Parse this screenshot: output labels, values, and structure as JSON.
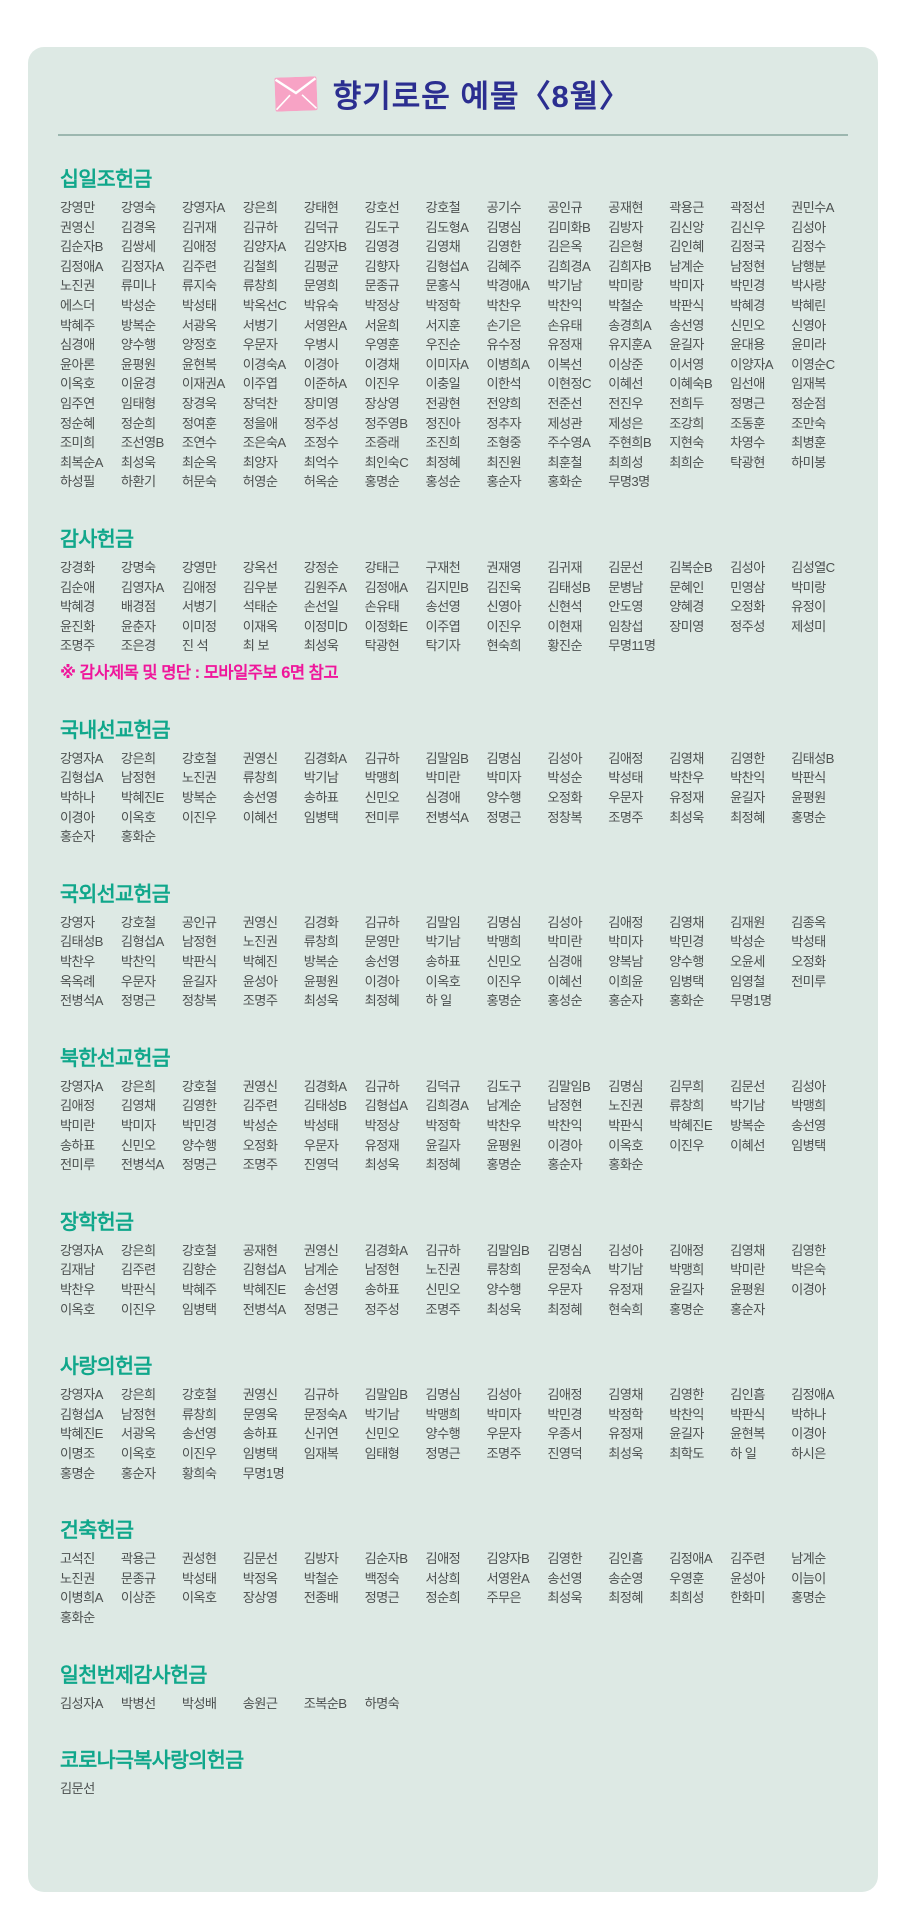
{
  "header": {
    "title": "향기로운  예물〈8월〉",
    "icon": "envelope-icon"
  },
  "colors": {
    "card_background": "#dde9e4",
    "title_navy": "#2b2e90",
    "section_teal": "#10a78b",
    "name_gray": "#4c504f",
    "note_magenta": "#ef169b",
    "envelope_pink": "#f7a3c5",
    "divider": "#9cb7af"
  },
  "sections": [
    {
      "id": "tithe",
      "title": "십일조헌금",
      "names": [
        "강영만",
        "강영숙",
        "강영자A",
        "강은희",
        "강태현",
        "강호선",
        "강호철",
        "공기수",
        "공인규",
        "공재현",
        "곽용근",
        "곽정선",
        "권민수A",
        "권영신",
        "김경옥",
        "김귀재",
        "김규하",
        "김덕규",
        "김도구",
        "김도형A",
        "김명심",
        "김미화B",
        "김방자",
        "김신앙",
        "김신우",
        "김성아",
        "김순자B",
        "김쌍세",
        "김애정",
        "김양자A",
        "김양자B",
        "김영경",
        "김영채",
        "김영한",
        "김은옥",
        "김은형",
        "김인혜",
        "김정국",
        "김정수",
        "김정애A",
        "김정자A",
        "김주련",
        "김철희",
        "김평균",
        "김향자",
        "김형섭A",
        "김혜주",
        "김희경A",
        "김희자B",
        "남계순",
        "남정현",
        "남행분",
        "노진권",
        "류미나",
        "류지숙",
        "류창희",
        "문영희",
        "문종규",
        "문홍식",
        "박경애A",
        "박기남",
        "박미랑",
        "박미자",
        "박민경",
        "박사랑",
        "에스더",
        "박성순",
        "박성태",
        "박옥선C",
        "박유숙",
        "박정상",
        "박정학",
        "박찬우",
        "박찬익",
        "박철순",
        "박판식",
        "박혜경",
        "박혜린",
        "박혜주",
        "방복순",
        "서광옥",
        "서병기",
        "서영완A",
        "서윤희",
        "서지훈",
        "손기은",
        "손유태",
        "송경희A",
        "송선영",
        "신민오",
        "신영아",
        "심경애",
        "양수행",
        "양정호",
        "우문자",
        "우병시",
        "우영훈",
        "우진순",
        "유수정",
        "유정재",
        "유지훈A",
        "윤길자",
        "윤대용",
        "윤미라",
        "윤아론",
        "윤평원",
        "윤현복",
        "이경숙A",
        "이경아",
        "이경채",
        "이미자A",
        "이병희A",
        "이복선",
        "이상준",
        "이서영",
        "이양자A",
        "이영순C",
        "이옥호",
        "이윤경",
        "이재권A",
        "이주엽",
        "이준하A",
        "이진우",
        "이충일",
        "이한석",
        "이현정C",
        "이혜선",
        "이혜숙B",
        "임선애",
        "임재복",
        "임주연",
        "임태형",
        "장경욱",
        "장덕찬",
        "장미영",
        "장상영",
        "전광현",
        "전양희",
        "전준선",
        "전진우",
        "전희두",
        "정명근",
        "정순점",
        "정순혜",
        "정순희",
        "정여훈",
        "정을애",
        "정주성",
        "정주영B",
        "정진아",
        "정추자",
        "제성관",
        "제성은",
        "조강희",
        "조동훈",
        "조만숙",
        "조미희",
        "조선영B",
        "조연수",
        "조은숙A",
        "조정수",
        "조증래",
        "조진희",
        "조형중",
        "주수영A",
        "주현희B",
        "지현숙",
        "차영수",
        "최병훈",
        "최복순A",
        "최성욱",
        "최순옥",
        "최양자",
        "최억수",
        "최인숙C",
        "최정혜",
        "최진원",
        "최훈철",
        "최희성",
        "최희순",
        "탁광현",
        "하미봉",
        "하성필",
        "하환기",
        "허문숙",
        "허영순",
        "허옥순",
        "홍명순",
        "홍성순",
        "홍순자",
        "홍화순",
        "무명3명"
      ]
    },
    {
      "id": "thanksgiving",
      "title": "감사헌금",
      "names": [
        "강경화",
        "강명숙",
        "강영만",
        "강옥선",
        "강정순",
        "강태근",
        "구재천",
        "권재영",
        "김귀재",
        "김문선",
        "김복순B",
        "김성아",
        "김성열C",
        "김순애",
        "김영자A",
        "김애정",
        "김우분",
        "김원주A",
        "김정애A",
        "김지민B",
        "김진욱",
        "김태성B",
        "문병남",
        "문혜인",
        "민영삼",
        "박미랑",
        "박혜경",
        "배경점",
        "서병기",
        "석태순",
        "손선일",
        "손유태",
        "송선영",
        "신영아",
        "신현석",
        "안도영",
        "양혜경",
        "오정화",
        "유정이",
        "윤진화",
        "윤춘자",
        "이미정",
        "이재옥",
        "이정미D",
        "이정화E",
        "이주엽",
        "이진우",
        "이현재",
        "임창섭",
        "장미영",
        "정주성",
        "제성미",
        "조명주",
        "조은경",
        "진 석",
        "최 보",
        "최성욱",
        "탁광현",
        "탁기자",
        "현숙희",
        "황진순",
        "무명11명"
      ],
      "note": "※ 감사제목 및 명단 : 모바일주보 6면 참고"
    },
    {
      "id": "domestic-mission",
      "title": "국내선교헌금",
      "names": [
        "강영자A",
        "강은희",
        "강호철",
        "권영신",
        "김경화A",
        "김규하",
        "김말임B",
        "김명심",
        "김성아",
        "김애정",
        "김영채",
        "김영한",
        "김태성B",
        "김형섭A",
        "남정현",
        "노진권",
        "류창희",
        "박기남",
        "박맹희",
        "박미란",
        "박미자",
        "박성순",
        "박성태",
        "박찬우",
        "박찬익",
        "박판식",
        "박하나",
        "박혜진E",
        "방복순",
        "송선영",
        "송하표",
        "신민오",
        "심경애",
        "양수행",
        "오정화",
        "우문자",
        "유정재",
        "윤길자",
        "윤평원",
        "이경아",
        "이옥호",
        "이진우",
        "이혜선",
        "임병택",
        "전미루",
        "전병석A",
        "정명근",
        "정창복",
        "조명주",
        "최성욱",
        "최정혜",
        "홍명순",
        "홍순자",
        "홍화순"
      ]
    },
    {
      "id": "overseas-mission",
      "title": "국외선교헌금",
      "names": [
        "강영자",
        "강호철",
        "공인규",
        "권영신",
        "김경화",
        "김규하",
        "김말임",
        "김명심",
        "김성아",
        "김애정",
        "김영채",
        "김재원",
        "김종옥",
        "김태성B",
        "김형섭A",
        "남정현",
        "노진권",
        "류창희",
        "문영만",
        "박기남",
        "박맹희",
        "박미란",
        "박미자",
        "박민경",
        "박성순",
        "박성태",
        "박찬우",
        "박찬익",
        "박판식",
        "박혜진",
        "방복순",
        "송선영",
        "송하표",
        "신민오",
        "심경애",
        "양복남",
        "양수행",
        "오윤세",
        "오정화",
        "옥옥례",
        "우문자",
        "윤길자",
        "윤성아",
        "윤평원",
        "이경아",
        "이옥호",
        "이진우",
        "이혜선",
        "이희윤",
        "임병택",
        "임영철",
        "전미루",
        "전병석A",
        "정명근",
        "정창복",
        "조명주",
        "최성욱",
        "최정혜",
        "하 일",
        "홍명순",
        "홍성순",
        "홍순자",
        "홍화순",
        "무명1명"
      ]
    },
    {
      "id": "northkorea-mission",
      "title": "북한선교헌금",
      "names": [
        "강영자A",
        "강은희",
        "강호철",
        "권영신",
        "김경화A",
        "김규하",
        "김덕규",
        "김도구",
        "김말임B",
        "김명심",
        "김무희",
        "김문선",
        "김성아",
        "김애정",
        "김영채",
        "김영한",
        "김주련",
        "김태성B",
        "김형섭A",
        "김희경A",
        "남계순",
        "남정현",
        "노진권",
        "류창희",
        "박기남",
        "박맹희",
        "박미란",
        "박미자",
        "박민경",
        "박성순",
        "박성태",
        "박정상",
        "박정학",
        "박찬우",
        "박찬익",
        "박판식",
        "박혜진E",
        "방복순",
        "송선영",
        "송하표",
        "신민오",
        "양수행",
        "오정화",
        "우문자",
        "유정재",
        "윤길자",
        "윤평원",
        "이경아",
        "이옥호",
        "이진우",
        "이혜선",
        "임병택",
        "전미루",
        "전병석A",
        "정명근",
        "조명주",
        "진영덕",
        "최성욱",
        "최정혜",
        "홍명순",
        "홍순자",
        "홍화순"
      ]
    },
    {
      "id": "scholarship",
      "title": "장학헌금",
      "names": [
        "강영자A",
        "강은희",
        "강호철",
        "공재현",
        "권영신",
        "김경화A",
        "김규하",
        "김말임B",
        "김명심",
        "김성아",
        "김애정",
        "김영채",
        "김영한",
        "김재남",
        "김주련",
        "김향순",
        "김형섭A",
        "남계순",
        "남정현",
        "노진권",
        "류창희",
        "문정숙A",
        "박기남",
        "박맹희",
        "박미란",
        "박은숙",
        "박찬우",
        "박판식",
        "박혜주",
        "박혜진E",
        "송선영",
        "송하표",
        "신민오",
        "양수행",
        "우문자",
        "유정재",
        "윤길자",
        "윤평원",
        "이경아",
        "이옥호",
        "이진우",
        "임병택",
        "전병석A",
        "정명근",
        "정주성",
        "조명주",
        "최성욱",
        "최정혜",
        "현숙희",
        "홍명순",
        "홍순자"
      ]
    },
    {
      "id": "love",
      "title": "사랑의헌금",
      "names": [
        "강영자A",
        "강은희",
        "강호철",
        "권영신",
        "김규하",
        "김말임B",
        "김명심",
        "김성아",
        "김애정",
        "김영채",
        "김영한",
        "김인흠",
        "김정애A",
        "김형섭A",
        "남정현",
        "류창희",
        "문영욱",
        "문정숙A",
        "박기남",
        "박맹희",
        "박미자",
        "박민경",
        "박정학",
        "박찬익",
        "박판식",
        "박하나",
        "박혜진E",
        "서광옥",
        "송선영",
        "송하표",
        "신귀연",
        "신민오",
        "양수행",
        "우문자",
        "우종서",
        "유정재",
        "윤길자",
        "윤현복",
        "이경아",
        "이명조",
        "이옥호",
        "이진우",
        "임병택",
        "임재복",
        "임태형",
        "정명근",
        "조명주",
        "진영덕",
        "최성욱",
        "최학도",
        "하 일",
        "하시은",
        "홍명순",
        "홍순자",
        "황희숙",
        "무명1명"
      ]
    },
    {
      "id": "building",
      "title": "건축헌금",
      "names": [
        "고석진",
        "곽용근",
        "권성현",
        "김문선",
        "김방자",
        "김순자B",
        "김애정",
        "김양자B",
        "김영한",
        "김인흠",
        "김정애A",
        "김주련",
        "남계순",
        "노진권",
        "문종규",
        "박성태",
        "박정옥",
        "박철순",
        "백정숙",
        "서상희",
        "서영완A",
        "송선영",
        "송순영",
        "우영훈",
        "윤성아",
        "이늠이",
        "이병희A",
        "이상준",
        "이옥호",
        "장상영",
        "전종배",
        "정명근",
        "정순희",
        "주무은",
        "최성욱",
        "최정혜",
        "최희성",
        "한화미",
        "홍명순",
        "홍화순"
      ]
    },
    {
      "id": "thousand-offering",
      "title": "일천번제감사헌금",
      "names": [
        "김성자A",
        "박병선",
        "박성배",
        "송원근",
        "조복순B",
        "하명숙"
      ]
    },
    {
      "id": "covid-love",
      "title": "코로나극복사랑의헌금",
      "names": [
        "김문선"
      ]
    }
  ]
}
